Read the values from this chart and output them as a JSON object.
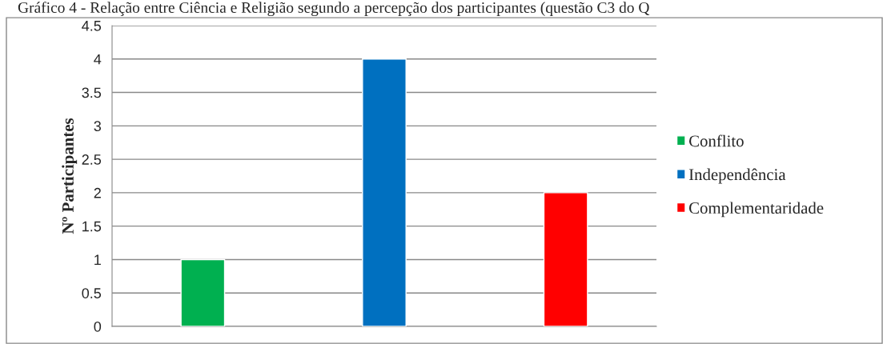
{
  "chart_data": {
    "type": "bar",
    "title": "Gráfico 4 - Relação entre Ciência e Religião segundo a percepção dos participantes (questão C3 do Q",
    "ylabel": "Nº Participantes",
    "categories": [
      null
    ],
    "series": [
      {
        "name": "Conflito",
        "color": "#00b050",
        "values": [
          1
        ]
      },
      {
        "name": "Independência",
        "color": "#0070c0",
        "values": [
          4
        ]
      },
      {
        "name": "Complementaridade",
        "color": "#ff0000",
        "values": [
          2
        ]
      }
    ],
    "ylim": [
      0,
      4.5
    ],
    "yticks": [
      0,
      0.5,
      1,
      1.5,
      2,
      2.5,
      3,
      3.5,
      4,
      4.5
    ],
    "grid": "y",
    "legend": "right"
  }
}
